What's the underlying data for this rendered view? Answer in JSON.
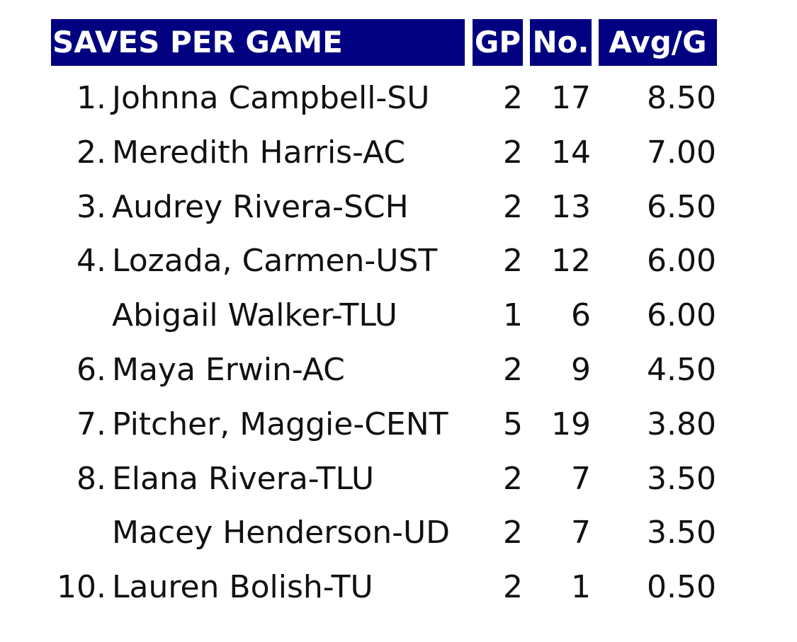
{
  "table": {
    "header": [
      "SAVES PER GAME",
      "GP",
      "No.",
      "Avg/G"
    ],
    "rows": [
      {
        "rank": "1.",
        "name": "Johnna Campbell-SU",
        "gp": "2",
        "no": "17",
        "avg": "8.50"
      },
      {
        "rank": "2.",
        "name": "Meredith Harris-AC",
        "gp": "2",
        "no": "14",
        "avg": "7.00"
      },
      {
        "rank": "3.",
        "name": "Audrey Rivera-SCH",
        "gp": "2",
        "no": "13",
        "avg": "6.50"
      },
      {
        "rank": "4.",
        "name": "Lozada, Carmen-UST",
        "gp": "2",
        "no": "12",
        "avg": "6.00"
      },
      {
        "name": "Abigail Walker-TLU",
        "gp": "1",
        "no": "6",
        "avg": "6.00"
      },
      {
        "rank": "6.",
        "name": "Maya Erwin-AC",
        "gp": "2",
        "no": "9",
        "avg": "4.50"
      },
      {
        "rank": "7.",
        "name": "Pitcher, Maggie-CENT",
        "gp": "5",
        "no": "19",
        "avg": "3.80"
      },
      {
        "rank": "8.",
        "name": "Elana Rivera-TLU",
        "gp": "2",
        "no": "7",
        "avg": "3.50"
      },
      {
        "name": "Macey Henderson-UD",
        "gp": "2",
        "no": "7",
        "avg": "3.50"
      },
      {
        "rank": "10.",
        "name": "Lauren Bolish-TU",
        "gp": "2",
        "no": "1",
        "avg": "0.50"
      }
    ]
  }
}
